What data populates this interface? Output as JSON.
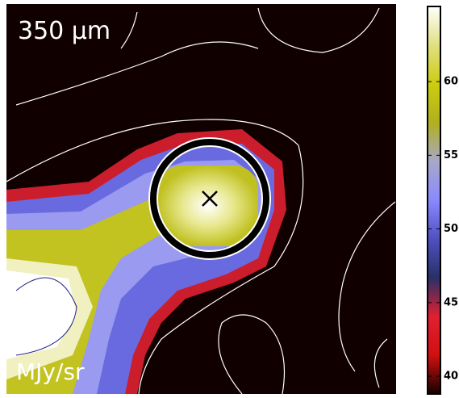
{
  "chart_data": {
    "type": "image",
    "label": "350 μm",
    "unit_label": "MJy/sr",
    "colorbar": {
      "lim": [
        38.8,
        65.1
      ],
      "ticks": [
        40,
        45,
        50,
        55,
        60
      ],
      "colors": [
        "#160000",
        "#d01010",
        "#e02030",
        "#283068",
        "#5050c0",
        "#8a8aff",
        "#a8a8c8",
        "#b0b020",
        "#cccc10",
        "#e0e080",
        "#ffffff"
      ]
    }
  }
}
